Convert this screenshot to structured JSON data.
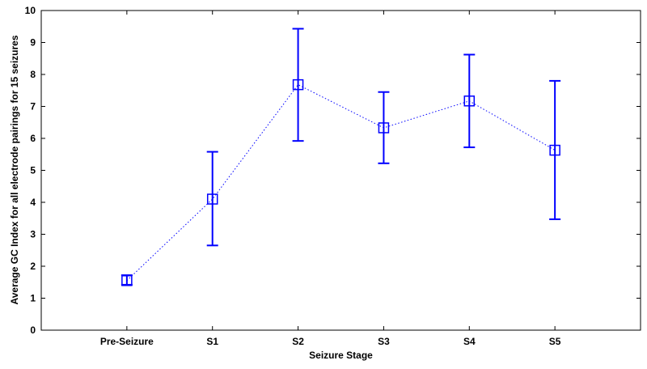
{
  "chart_data": {
    "type": "line",
    "title": "",
    "xlabel": "Seizure Stage",
    "ylabel": "Average GC Index for all electrode pairings for 15 seizures",
    "categories": [
      "Pre-Seizure",
      "S1",
      "S2",
      "S3",
      "S4",
      "S5"
    ],
    "x_range": [
      0,
      7
    ],
    "ylim": [
      0,
      10
    ],
    "yticks": [
      0,
      1,
      2,
      3,
      4,
      5,
      6,
      7,
      8,
      9,
      10
    ],
    "grid": false,
    "legend": "none",
    "series": [
      {
        "values": [
          1.55,
          4.1,
          7.68,
          6.33,
          7.17,
          5.63
        ],
        "error_lower": [
          1.42,
          2.65,
          5.92,
          5.22,
          5.72,
          3.47
        ],
        "error_upper": [
          1.72,
          5.58,
          9.43,
          7.45,
          8.62,
          7.8
        ],
        "line_style": "dotted",
        "marker": "square",
        "color": "#0000FF"
      }
    ]
  }
}
